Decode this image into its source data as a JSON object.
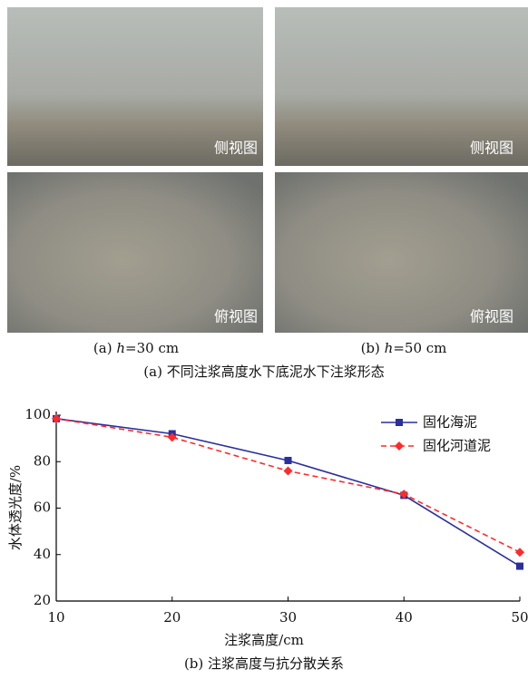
{
  "photos": {
    "panels": [
      {
        "label": "侧视图"
      },
      {
        "label": "侧视图"
      },
      {
        "label": "俯视图"
      },
      {
        "label": "俯视图"
      }
    ],
    "captions": [
      {
        "prefix": "(a)",
        "var": "h",
        "rest": "=30 cm"
      },
      {
        "prefix": "(b)",
        "var": "h",
        "rest": "=50 cm"
      }
    ],
    "title": "(a) 不同注浆高度水下底泥水下注浆形态"
  },
  "chart_data": {
    "type": "line",
    "caption": "(b) 注浆高度与抗分散关系",
    "x_label": "注浆高度/cm",
    "y_label": "水体透光度/%",
    "x": [
      10,
      20,
      30,
      40,
      50
    ],
    "series": [
      {
        "name": "固化海泥",
        "color": "#2a2f9c",
        "marker": "square",
        "dashed": false,
        "values": [
          98.5,
          92,
          80.5,
          65.5,
          35
        ]
      },
      {
        "name": "固化河道泥",
        "color": "#ff2a2a",
        "marker": "diamond",
        "dashed": true,
        "values": [
          98.5,
          90.5,
          76,
          66,
          41
        ]
      }
    ],
    "xlim": [
      10,
      50
    ],
    "xticks": [
      10,
      20,
      30,
      40,
      50
    ],
    "ylim": [
      20,
      100
    ],
    "yticks": [
      20,
      40,
      60,
      80,
      100
    ],
    "legend": "upper right",
    "grid": false
  }
}
